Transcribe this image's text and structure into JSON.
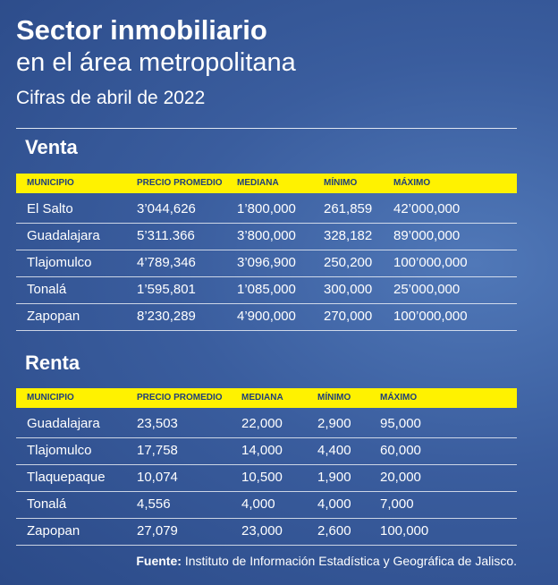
{
  "header": {
    "title": "Sector inmobiliario",
    "subtitle": "en el área metropolitana",
    "date": "Cifras de abril de 2022"
  },
  "sections": [
    {
      "title": "Venta",
      "columns": [
        "MUNICIPIO",
        "PRECIO PROMEDIO",
        "MEDIANA",
        "MÍNIMO",
        "MÁXIMO"
      ],
      "rows": [
        [
          "El Salto",
          "3’044,626",
          "1’800,000",
          "261,859",
          "42’000,000"
        ],
        [
          "Guadalajara",
          "5’311.366",
          "3’800,000",
          "328,182",
          "89’000,000"
        ],
        [
          "Tlajomulco",
          "4’789,346",
          "3’096,900",
          "250,200",
          "100’000,000"
        ],
        [
          "Tonalá",
          "1’595,801",
          "1’085,000",
          "300,000",
          "25’000,000"
        ],
        [
          "Zapopan",
          "8’230,289",
          "4’900,000",
          "270,000",
          "100’000,000"
        ]
      ]
    },
    {
      "title": "Renta",
      "columns": [
        "MUNICIPIO",
        "PRECIO PROMEDIO",
        "MEDIANA",
        "MÍNIMO",
        "MÁXIMO"
      ],
      "rows": [
        [
          "Guadalajara",
          "23,503",
          "22,000",
          "2,900",
          "95,000"
        ],
        [
          "Tlajomulco",
          "17,758",
          "14,000",
          "4,400",
          "60,000"
        ],
        [
          "Tlaquepaque",
          "10,074",
          "10,500",
          "1,900",
          "20,000"
        ],
        [
          "Tonalá",
          "4,556",
          "4,000",
          "4,000",
          "7,000"
        ],
        [
          "Zapopan",
          "27,079",
          "23,000",
          "2,600",
          "100,000"
        ]
      ]
    }
  ],
  "source": {
    "label": "Fuente:",
    "text": "Instituto de Información Estadística y Geográfica de Jalisco."
  }
}
